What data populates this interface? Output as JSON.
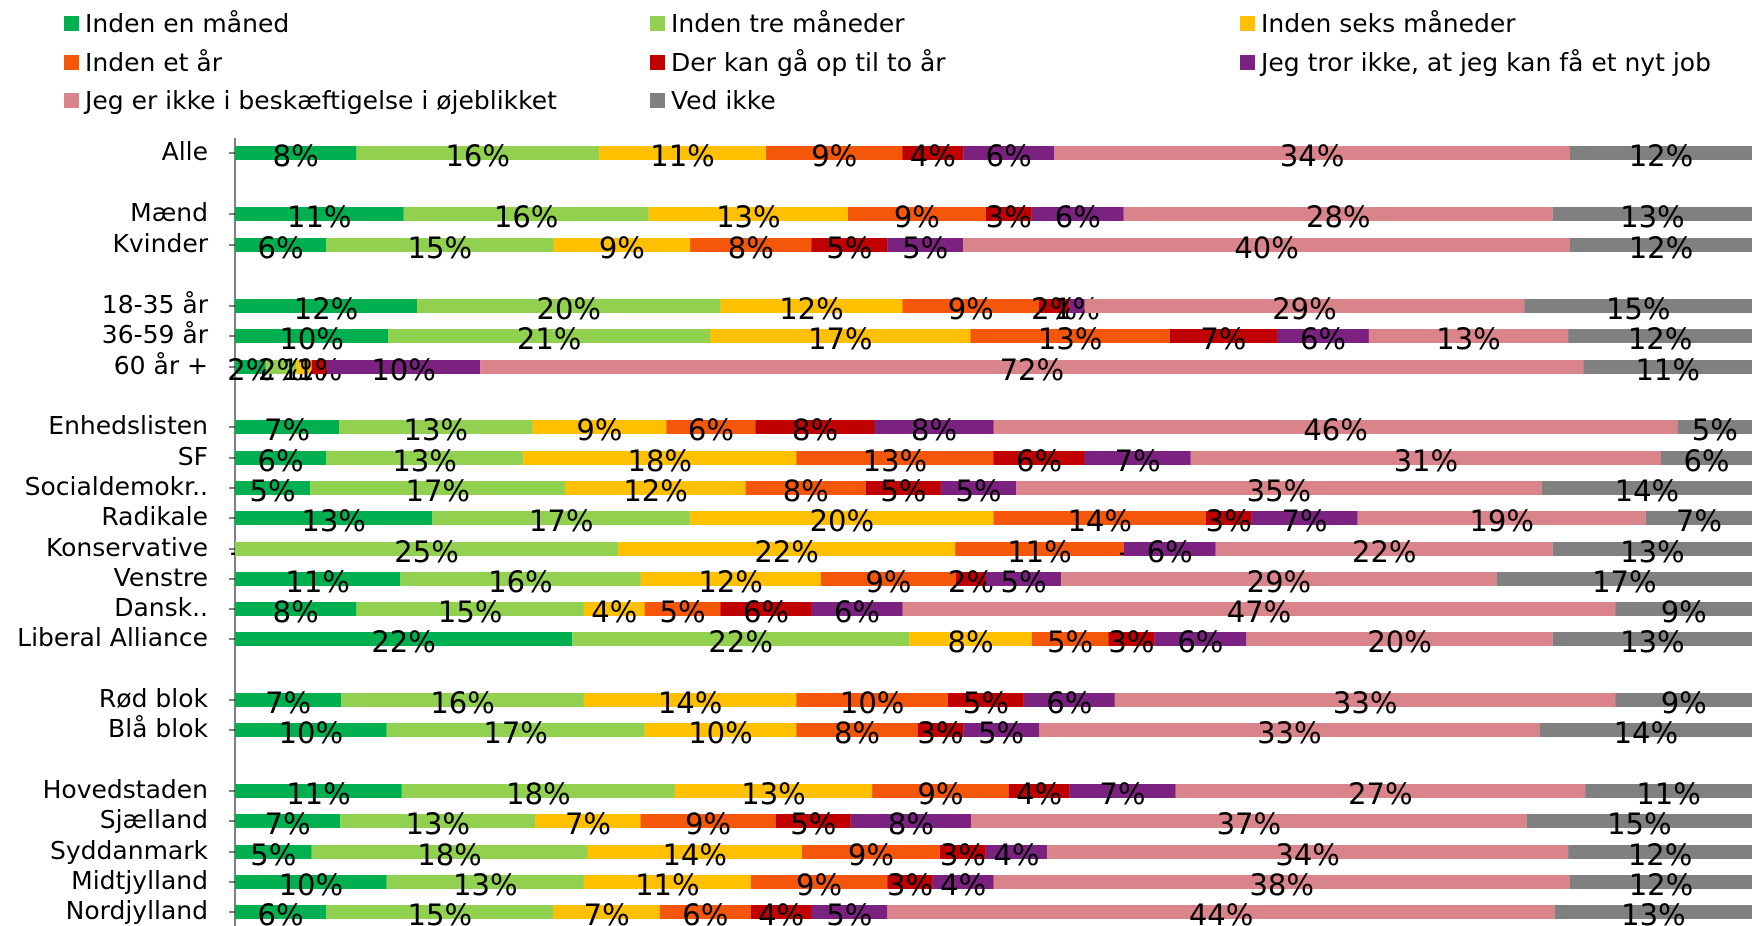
{
  "chart_data": {
    "type": "bar",
    "orientation": "horizontal",
    "stacked": true,
    "normalized": true,
    "legend_position": "top",
    "grid": false,
    "categories": [
      "Alle",
      "Mænd",
      "Kvinder",
      "18-35 år",
      "36-59 år",
      "60 år +",
      "Enhedslisten",
      "SF",
      "Socialdemokr..",
      "Radikale",
      "Konservative",
      "Venstre",
      "Dansk..",
      "Liberal Alliance",
      "Rød blok",
      "Blå blok",
      "Hovedstaden",
      "Sjælland",
      "Syddanmark",
      "Midtjylland",
      "Nordjylland"
    ],
    "series": [
      {
        "name": "Inden en måned",
        "color": "#00B050",
        "values": [
          8,
          11,
          6,
          12,
          10,
          2,
          7,
          6,
          5,
          13,
          0,
          11,
          8,
          22,
          7,
          10,
          11,
          7,
          5,
          10,
          6
        ],
        "labels": [
          "8%",
          "11%",
          "6%",
          "12%",
          "10%",
          "2%",
          "7%",
          "6%",
          "5%",
          "13%",
          "-",
          "11%",
          "8%",
          "22%",
          "7%",
          "10%",
          "11%",
          "7%",
          "5%",
          "10%",
          "6%"
        ]
      },
      {
        "name": "Inden tre måneder",
        "color": "#92D050",
        "values": [
          16,
          16,
          15,
          20,
          21,
          2,
          13,
          13,
          17,
          17,
          25,
          16,
          15,
          22,
          16,
          17,
          18,
          13,
          18,
          13,
          15
        ],
        "labels": [
          "16%",
          "16%",
          "15%",
          "20%",
          "21%",
          "2%",
          "13%",
          "13%",
          "17%",
          "17%",
          "25%",
          "16%",
          "15%",
          "22%",
          "16%",
          "17%",
          "18%",
          "13%",
          "18%",
          "13%",
          "15%"
        ]
      },
      {
        "name": "Inden seks måneder",
        "color": "#FFC000",
        "values": [
          11,
          13,
          9,
          12,
          17,
          1,
          9,
          18,
          12,
          20,
          22,
          12,
          4,
          8,
          14,
          10,
          13,
          7,
          14,
          11,
          7
        ],
        "labels": [
          "11%",
          "13%",
          "9%",
          "12%",
          "17%",
          "1%",
          "9%",
          "18%",
          "12%",
          "20%",
          "22%",
          "12%",
          "4%",
          "8%",
          "14%",
          "10%",
          "13%",
          "7%",
          "14%",
          "11%",
          "7%"
        ]
      },
      {
        "name": "Inden et år",
        "color": "#F4560A",
        "values": [
          9,
          9,
          8,
          9,
          13,
          0,
          6,
          13,
          8,
          14,
          11,
          9,
          5,
          5,
          10,
          8,
          9,
          9,
          9,
          9,
          6
        ],
        "labels": [
          "9%",
          "9%",
          "8%",
          "9%",
          "13%",
          "",
          "6%",
          "13%",
          "8%",
          "14%",
          "11%",
          "9%",
          "5%",
          "5%",
          "10%",
          "8%",
          "9%",
          "9%",
          "9%",
          "9%",
          "6%"
        ]
      },
      {
        "name": "Der kan gå op til to år",
        "color": "#C00000",
        "values": [
          4,
          3,
          5,
          2,
          7,
          1,
          8,
          6,
          5,
          3,
          0,
          2,
          6,
          3,
          5,
          3,
          4,
          5,
          3,
          3,
          4
        ],
        "labels": [
          "4%",
          "3%",
          "5%",
          "2%",
          "7%",
          "1%",
          "8%",
          "6%",
          "5%",
          "3%",
          "-",
          "2%",
          "6%",
          "3%",
          "5%",
          "3%",
          "4%",
          "5%",
          "3%",
          "3%",
          "4%"
        ]
      },
      {
        "name": "Jeg tror ikke, at jeg kan få et nyt job",
        "color": "#7B2280",
        "values": [
          6,
          6,
          5,
          1,
          6,
          10,
          8,
          7,
          5,
          7,
          6,
          5,
          6,
          6,
          6,
          5,
          7,
          8,
          4,
          4,
          5
        ],
        "labels": [
          "6%",
          "6%",
          "5%",
          "1%",
          "6%",
          "10%",
          "8%",
          "7%",
          "5%",
          "7%",
          "6%",
          "5%",
          "6%",
          "6%",
          "6%",
          "5%",
          "7%",
          "8%",
          "4%",
          "4%",
          "5%"
        ]
      },
      {
        "name": "Jeg er ikke i beskæftigelse i øjeblikket",
        "color": "#D9838B",
        "values": [
          34,
          28,
          40,
          29,
          13,
          72,
          46,
          31,
          35,
          19,
          22,
          29,
          47,
          20,
          33,
          33,
          27,
          37,
          34,
          38,
          44
        ],
        "labels": [
          "34%",
          "28%",
          "40%",
          "29%",
          "13%",
          "72%",
          "46%",
          "31%",
          "35%",
          "19%",
          "22%",
          "29%",
          "47%",
          "20%",
          "33%",
          "33%",
          "27%",
          "37%",
          "34%",
          "38%",
          "44%"
        ]
      },
      {
        "name": "Ved ikke",
        "color": "#808080",
        "values": [
          12,
          13,
          12,
          15,
          12,
          11,
          5,
          6,
          14,
          7,
          13,
          17,
          9,
          13,
          9,
          14,
          11,
          15,
          12,
          12,
          13
        ],
        "labels": [
          "12%",
          "13%",
          "12%",
          "15%",
          "12%",
          "11%",
          "5%",
          "6%",
          "14%",
          "7%",
          "13%",
          "17%",
          "9%",
          "13%",
          "9%",
          "14%",
          "11%",
          "15%",
          "12%",
          "12%",
          "13%"
        ]
      }
    ]
  }
}
